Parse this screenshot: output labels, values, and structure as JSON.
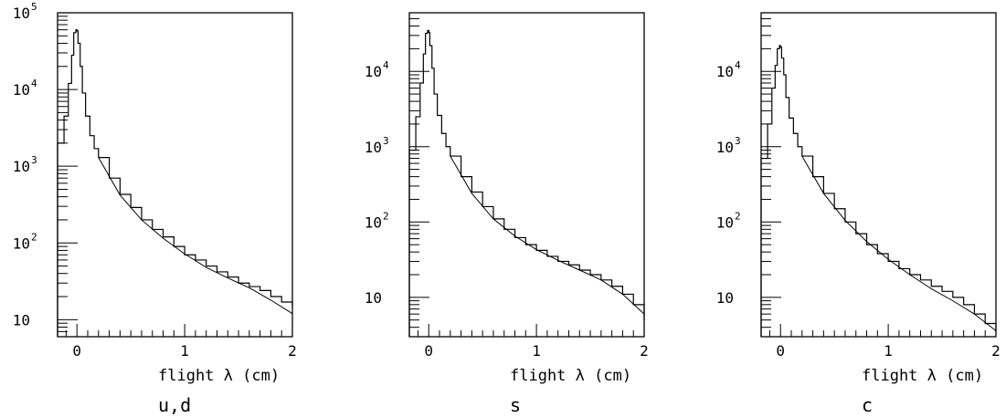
{
  "chart_data": [
    {
      "type": "line",
      "xlabel": "flight λ (cm)",
      "caption": "u,d",
      "xlim": [
        -0.18,
        2.0
      ],
      "ylim": [
        6,
        100000
      ],
      "yscale": "log",
      "x_ticks": [
        "0",
        "1",
        "2"
      ],
      "x_tick_values": [
        0,
        1,
        2
      ],
      "y_ticks": [
        {
          "base": "10",
          "exp": ""
        },
        {
          "base": "10",
          "exp": "2"
        },
        {
          "base": "10",
          "exp": "3"
        },
        {
          "base": "10",
          "exp": "4"
        },
        {
          "base": "10",
          "exp": "5"
        }
      ],
      "y_tick_values": [
        10,
        100,
        1000,
        10000,
        100000
      ],
      "series": [
        {
          "kind": "histogram",
          "x": [
            -0.18,
            -0.12,
            -0.08,
            -0.05,
            -0.03,
            -0.01,
            0.0,
            0.01,
            0.03,
            0.05,
            0.08,
            0.12,
            0.16,
            0.2,
            0.3,
            0.4,
            0.5,
            0.6,
            0.7,
            0.8,
            0.9,
            1.0,
            1.1,
            1.2,
            1.3,
            1.4,
            1.5,
            1.6,
            1.7,
            1.8,
            1.9,
            2.0
          ],
          "y": [
            2000,
            4500,
            12000,
            28000,
            55000,
            60000,
            58000,
            40000,
            20000,
            9000,
            4500,
            2500,
            1700,
            1300,
            700,
            430,
            290,
            200,
            150,
            120,
            90,
            70,
            60,
            50,
            42,
            36,
            30,
            27,
            24,
            20,
            17,
            15
          ]
        },
        {
          "kind": "fit",
          "x": [
            0.2,
            0.4,
            0.6,
            0.8,
            1.0,
            1.2,
            1.4,
            1.6,
            1.8,
            2.0
          ],
          "y": [
            1300,
            420,
            200,
            115,
            72,
            48,
            35,
            26,
            18,
            12
          ]
        }
      ]
    },
    {
      "type": "line",
      "xlabel": "flight λ (cm)",
      "caption": "s",
      "xlim": [
        -0.18,
        2.0
      ],
      "ylim": [
        3,
        60000
      ],
      "yscale": "log",
      "x_ticks": [
        "0",
        "1",
        "2"
      ],
      "x_tick_values": [
        0,
        1,
        2
      ],
      "y_ticks": [
        {
          "base": "10",
          "exp": ""
        },
        {
          "base": "10",
          "exp": "2"
        },
        {
          "base": "10",
          "exp": "3"
        },
        {
          "base": "10",
          "exp": "4"
        }
      ],
      "y_tick_values": [
        10,
        100,
        1000,
        10000
      ],
      "series": [
        {
          "kind": "histogram",
          "x": [
            -0.18,
            -0.12,
            -0.08,
            -0.05,
            -0.03,
            -0.01,
            0.0,
            0.01,
            0.03,
            0.05,
            0.08,
            0.12,
            0.16,
            0.2,
            0.3,
            0.4,
            0.5,
            0.6,
            0.7,
            0.8,
            0.9,
            1.0,
            1.1,
            1.2,
            1.3,
            1.4,
            1.5,
            1.6,
            1.7,
            1.8,
            1.9,
            2.0
          ],
          "y": [
            900,
            2500,
            7000,
            17000,
            32000,
            35000,
            33000,
            22000,
            11000,
            5000,
            2600,
            1500,
            1000,
            750,
            400,
            250,
            160,
            110,
            80,
            62,
            50,
            42,
            35,
            30,
            27,
            23,
            20,
            17,
            14,
            11,
            8,
            5
          ]
        },
        {
          "kind": "fit",
          "x": [
            0.2,
            0.4,
            0.6,
            0.8,
            1.0,
            1.2,
            1.4,
            1.6,
            1.8,
            2.0
          ],
          "y": [
            750,
            240,
            110,
            65,
            43,
            31,
            23,
            17,
            11,
            6
          ]
        }
      ]
    },
    {
      "type": "line",
      "xlabel": "flight λ (cm)",
      "caption": "c",
      "xlim": [
        -0.18,
        2.0
      ],
      "ylim": [
        3,
        60000
      ],
      "yscale": "log",
      "x_ticks": [
        "0",
        "1",
        "2"
      ],
      "x_tick_values": [
        0,
        1,
        2
      ],
      "y_ticks": [
        {
          "base": "10",
          "exp": ""
        },
        {
          "base": "10",
          "exp": "2"
        },
        {
          "base": "10",
          "exp": "3"
        },
        {
          "base": "10",
          "exp": "4"
        }
      ],
      "y_tick_values": [
        10,
        100,
        1000,
        10000
      ],
      "series": [
        {
          "kind": "histogram",
          "x": [
            -0.18,
            -0.12,
            -0.08,
            -0.05,
            -0.03,
            -0.01,
            0.0,
            0.01,
            0.03,
            0.05,
            0.08,
            0.12,
            0.16,
            0.2,
            0.3,
            0.4,
            0.5,
            0.6,
            0.7,
            0.8,
            0.9,
            1.0,
            1.1,
            1.2,
            1.3,
            1.4,
            1.5,
            1.6,
            1.7,
            1.8,
            1.9,
            2.0
          ],
          "y": [
            700,
            2000,
            6000,
            12000,
            20000,
            22000,
            21000,
            15000,
            9000,
            4500,
            2400,
            1500,
            1000,
            750,
            400,
            240,
            150,
            100,
            70,
            50,
            38,
            30,
            24,
            20,
            17,
            14,
            12,
            10,
            8,
            6,
            4.5,
            3.5
          ]
        },
        {
          "kind": "fit",
          "x": [
            0.2,
            0.4,
            0.6,
            0.8,
            1.0,
            1.2,
            1.4,
            1.6,
            1.8,
            2.0
          ],
          "y": [
            750,
            240,
            105,
            55,
            32,
            20,
            13,
            9,
            6,
            3.6
          ]
        }
      ]
    }
  ]
}
